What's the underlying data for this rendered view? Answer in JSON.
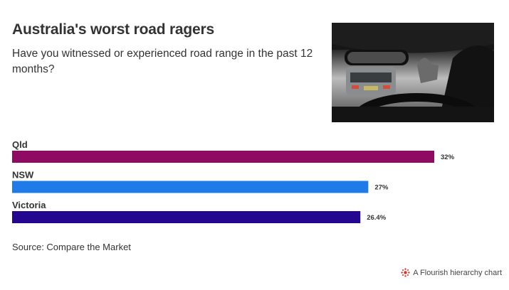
{
  "title": "Australia's worst road ragers",
  "subtitle": "Have you witnessed or experienced road range in the past 12 months?",
  "source": "Source: Compare the Market",
  "credit": {
    "text": "A Flourish hierarchy chart",
    "icon": "flourish-logo-icon"
  },
  "photo": {
    "icon": "car-interior-photo"
  },
  "chart_data": {
    "type": "bar",
    "orientation": "horizontal",
    "title": "Australia's worst road ragers",
    "subtitle": "Have you witnessed or experienced road range in the past 12 months?",
    "categories": [
      "Qld",
      "NSW",
      "Victoria"
    ],
    "values": [
      32,
      27,
      26.4
    ],
    "value_labels": [
      "32%",
      "27%",
      "26.4%"
    ],
    "colors": [
      "#8f0b63",
      "#1f7be8",
      "#24068f"
    ],
    "xlim": [
      0,
      33
    ],
    "grid": false,
    "legend": "none"
  }
}
